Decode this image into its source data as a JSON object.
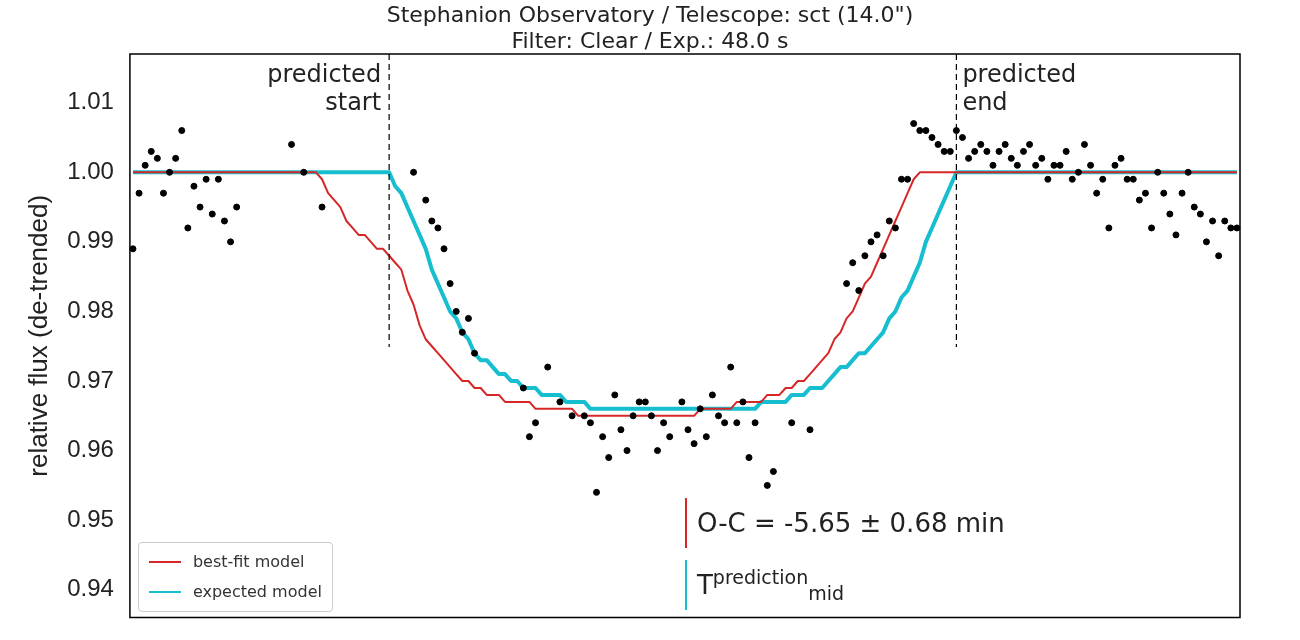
{
  "chart_data": {
    "type": "scatter",
    "title": "Stephanion Observatory / Telescope: sct (14.0\")",
    "subtitle": "Filter: Clear / Exp.: 48.0 s",
    "ylabel": "relative flux (de-trended)",
    "categories": [
      null,
      null,
      null,
      null,
      null,
      null,
      null,
      null,
      null,
      null,
      null,
      null,
      null,
      null,
      null,
      null,
      null,
      null,
      null,
      null,
      null,
      null,
      null,
      null,
      null,
      null,
      null,
      null,
      null,
      null,
      null,
      null,
      null,
      null,
      null,
      null,
      null,
      null,
      null,
      null,
      null,
      null,
      null,
      null,
      null,
      null,
      null,
      null,
      null,
      null,
      null,
      null,
      null,
      null,
      null,
      null,
      null,
      null,
      null,
      null,
      null,
      null,
      null,
      null,
      null,
      null,
      null,
      null,
      null,
      null,
      null,
      null,
      null,
      null,
      null,
      null,
      null,
      null,
      null,
      null,
      null,
      null,
      null,
      null,
      null,
      null,
      null,
      null,
      null,
      null,
      null,
      null,
      null,
      null,
      null,
      null,
      null,
      null,
      null,
      null,
      null,
      null,
      null,
      null,
      null,
      null,
      null,
      null,
      null,
      null,
      null,
      null,
      null,
      null,
      null,
      null,
      null,
      null,
      null,
      null,
      null,
      null,
      null,
      null,
      null,
      null,
      null,
      null,
      null,
      null,
      null,
      null,
      null,
      null,
      null,
      null,
      null,
      null,
      null,
      null,
      null,
      null,
      null,
      null,
      null,
      null,
      null,
      null,
      null,
      null,
      null,
      null,
      null,
      null,
      null,
      null,
      null,
      null,
      null,
      null,
      null,
      null,
      null,
      null,
      null,
      null,
      null,
      null,
      null,
      null,
      null,
      null,
      null,
      null,
      null,
      null,
      null,
      null,
      null,
      null,
      null,
      null
    ],
    "ylim": [
      0.936,
      1.017
    ],
    "yticks": [
      0.94,
      0.95,
      0.96,
      0.97,
      0.98,
      0.99,
      {
        "value": 1.0,
        "label": "1.00"
      },
      1.01
    ],
    "tick_labels": "y",
    "legend": "bottom left",
    "marker": "circle",
    "series": [
      {
        "color": "#000000",
        "values": [
          0.989,
          0.997,
          1.001,
          1.003,
          1.002,
          0.997,
          1.0,
          1.002,
          1.006,
          0.992,
          0.998,
          0.995,
          0.999,
          0.994,
          0.999,
          0.993,
          0.99,
          0.995,
          null,
          null,
          null,
          null,
          null,
          null,
          null,
          null,
          1.004,
          null,
          1.0,
          null,
          null,
          0.995,
          null,
          null,
          null,
          null,
          null,
          null,
          null,
          null,
          null,
          null,
          null,
          null,
          null,
          null,
          1.0,
          null,
          0.996,
          0.993,
          0.992,
          0.989,
          0.984,
          0.98,
          0.977,
          0.979,
          0.974,
          null,
          null,
          null,
          null,
          null,
          null,
          null,
          0.969,
          0.962,
          0.964,
          null,
          0.972,
          null,
          0.967,
          null,
          0.965,
          null,
          0.965,
          0.964,
          0.954,
          0.962,
          0.959,
          0.968,
          0.963,
          0.96,
          0.965,
          0.967,
          0.967,
          0.965,
          0.96,
          0.964,
          0.962,
          null,
          0.967,
          0.963,
          0.961,
          0.966,
          0.962,
          0.968,
          0.965,
          0.964,
          0.972,
          0.964,
          0.967,
          0.959,
          0.964,
          null,
          0.955,
          0.957,
          null,
          null,
          0.964,
          null,
          null,
          0.963,
          null,
          null,
          null,
          null,
          null,
          0.984,
          0.987,
          0.983,
          0.988,
          0.99,
          0.991,
          0.988,
          0.993,
          0.992,
          0.999,
          0.999,
          1.007,
          1.006,
          1.006,
          1.005,
          1.004,
          1.003,
          1.003,
          1.006,
          1.005,
          1.002,
          1.003,
          1.004,
          1.003,
          1.001,
          1.003,
          1.004,
          1.002,
          1.001,
          1.003,
          1.004,
          1.001,
          1.002,
          0.999,
          1.001,
          1.001,
          1.003,
          0.999,
          1.0,
          1.004,
          1.001,
          0.997,
          0.999,
          0.992,
          1.001,
          1.002,
          0.999,
          0.999,
          0.996,
          0.997,
          0.992,
          1.0,
          0.997,
          0.994,
          0.991,
          0.997,
          1.0,
          0.995,
          0.994,
          0.99,
          0.993,
          0.988,
          0.993,
          0.992,
          0.992
        ]
      },
      {
        "type": "line",
        "name": "best-fit model",
        "color": "#d62728",
        "marker": "none",
        "values": [
          1.0,
          1.0,
          1.0,
          1.0,
          1.0,
          1.0,
          1.0,
          1.0,
          1.0,
          1.0,
          1.0,
          1.0,
          1.0,
          1.0,
          1.0,
          1.0,
          1.0,
          1.0,
          1.0,
          1.0,
          1.0,
          1.0,
          1.0,
          1.0,
          1.0,
          1.0,
          1.0,
          1.0,
          1.0,
          1.0,
          1.0,
          0.999,
          0.997,
          0.996,
          0.995,
          0.993,
          0.992,
          0.991,
          0.991,
          0.99,
          0.989,
          0.989,
          0.988,
          0.987,
          0.986,
          0.983,
          0.981,
          0.978,
          0.976,
          0.975,
          0.974,
          0.973,
          0.972,
          0.971,
          0.97,
          0.97,
          0.969,
          0.969,
          0.968,
          0.968,
          0.968,
          0.967,
          0.967,
          0.967,
          0.967,
          0.967,
          0.966,
          0.966,
          0.966,
          0.966,
          0.966,
          0.966,
          0.966,
          0.965,
          0.965,
          0.965,
          0.965,
          0.965,
          0.965,
          0.965,
          0.965,
          0.965,
          0.965,
          0.965,
          0.965,
          0.965,
          0.965,
          0.965,
          0.965,
          0.965,
          0.965,
          0.965,
          0.965,
          0.966,
          0.966,
          0.966,
          0.966,
          0.966,
          0.966,
          0.967,
          0.967,
          0.967,
          0.967,
          0.967,
          0.968,
          0.968,
          0.968,
          0.969,
          0.969,
          0.97,
          0.97,
          0.971,
          0.972,
          0.973,
          0.974,
          0.976,
          0.977,
          0.979,
          0.98,
          0.982,
          0.984,
          0.985,
          0.987,
          0.989,
          0.991,
          0.993,
          0.995,
          0.997,
          0.999,
          1.0,
          1.0,
          1.0,
          1.0,
          1.0,
          1.0,
          1.0,
          1.0,
          1.0,
          1.0,
          1.0,
          1.0,
          1.0,
          1.0,
          1.0,
          1.0,
          1.0,
          1.0,
          1.0,
          1.0,
          1.0,
          1.0,
          1.0,
          1.0,
          1.0,
          1.0,
          1.0,
          1.0,
          1.0,
          1.0,
          1.0,
          1.0,
          1.0,
          1.0,
          1.0,
          1.0,
          1.0,
          1.0,
          1.0,
          1.0,
          1.0,
          1.0,
          1.0,
          1.0,
          1.0,
          1.0,
          1.0,
          1.0,
          1.0,
          1.0,
          1.0,
          1.0,
          1.0
        ]
      },
      {
        "type": "line",
        "name": "expected model",
        "color": "#17becf",
        "marker": "none",
        "values": [
          1.0,
          1.0,
          1.0,
          1.0,
          1.0,
          1.0,
          1.0,
          1.0,
          1.0,
          1.0,
          1.0,
          1.0,
          1.0,
          1.0,
          1.0,
          1.0,
          1.0,
          1.0,
          1.0,
          1.0,
          1.0,
          1.0,
          1.0,
          1.0,
          1.0,
          1.0,
          1.0,
          1.0,
          1.0,
          1.0,
          1.0,
          1.0,
          1.0,
          1.0,
          1.0,
          1.0,
          1.0,
          1.0,
          1.0,
          1.0,
          1.0,
          1.0,
          1.0,
          0.998,
          0.997,
          0.995,
          0.993,
          0.991,
          0.989,
          0.986,
          0.984,
          0.982,
          0.98,
          0.979,
          0.977,
          0.976,
          0.974,
          0.973,
          0.973,
          0.972,
          0.971,
          0.971,
          0.97,
          0.97,
          0.969,
          0.969,
          0.969,
          0.968,
          0.968,
          0.968,
          0.968,
          0.967,
          0.967,
          0.967,
          0.967,
          0.966,
          0.966,
          0.966,
          0.966,
          0.966,
          0.966,
          0.966,
          0.966,
          0.966,
          0.966,
          0.966,
          0.966,
          0.966,
          0.966,
          0.966,
          0.966,
          0.966,
          0.966,
          0.966,
          0.966,
          0.966,
          0.966,
          0.966,
          0.966,
          0.966,
          0.966,
          0.966,
          0.966,
          0.967,
          0.967,
          0.967,
          0.967,
          0.967,
          0.968,
          0.968,
          0.968,
          0.969,
          0.969,
          0.969,
          0.97,
          0.971,
          0.972,
          0.972,
          0.973,
          0.974,
          0.974,
          0.975,
          0.976,
          0.977,
          0.979,
          0.98,
          0.982,
          0.983,
          0.985,
          0.987,
          0.99,
          0.992,
          0.994,
          0.996,
          0.998,
          1.0,
          1.0,
          1.0,
          1.0,
          1.0,
          1.0,
          1.0,
          1.0,
          1.0,
          1.0,
          1.0,
          1.0,
          1.0,
          1.0,
          1.0,
          1.0,
          1.0,
          1.0,
          1.0,
          1.0,
          1.0,
          1.0,
          1.0,
          1.0,
          1.0,
          1.0,
          1.0,
          1.0,
          1.0,
          1.0,
          1.0,
          1.0,
          1.0,
          1.0,
          1.0,
          1.0,
          1.0,
          1.0,
          1.0,
          1.0,
          1.0,
          1.0,
          1.0,
          1.0,
          1.0,
          1.0,
          1.0
        ]
      }
    ],
    "annotations": [
      "predicted\nstart",
      "predicted\nend",
      "O-C = -5.65 ± 0.68 min",
      "T$^{prediction}$$_{mid}$"
    ]
  }
}
